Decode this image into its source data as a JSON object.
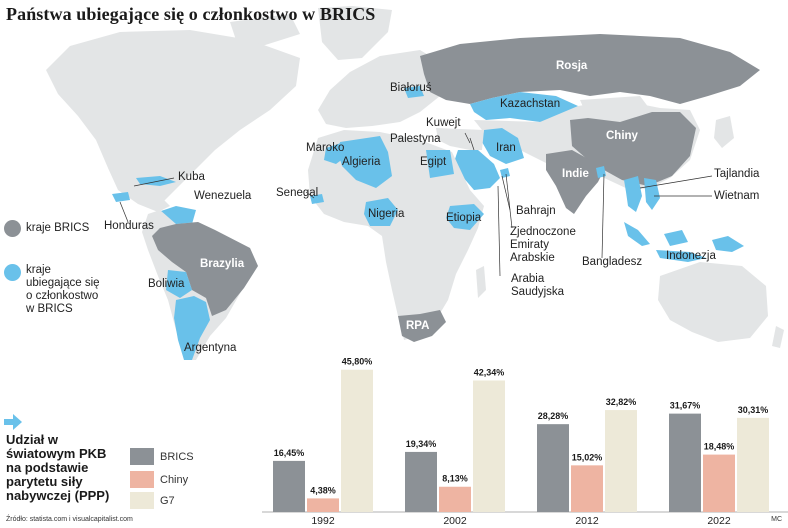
{
  "title": "Państwa ubiegające się o członkostwo w BRICS",
  "colors": {
    "brics": "#8c9196",
    "candidate": "#69c1ea",
    "land": "#e3e5e6",
    "chiny": "#eeb4a2",
    "g7": "#ede9d8"
  },
  "legend": {
    "brics": "kraje BRICS",
    "candidate": "kraje ubiegające się o członkostwo w BRICS"
  },
  "map_labels": {
    "rosja": "Rosja",
    "chiny": "Chiny",
    "indie": "Indie",
    "brazylia": "Brazylia",
    "rpa": "RPA",
    "bialorus": "Białoruś",
    "kazachstan": "Kazachstan",
    "kuwejt": "Kuwejt",
    "palestyna": "Palestyna",
    "maroko": "Maroko",
    "algieria": "Algieria",
    "egipt": "Egipt",
    "iran": "Iran",
    "kuba": "Kuba",
    "wenezuela": "Wenezuela",
    "senegal": "Senegal",
    "nigeria": "Nigeria",
    "etiopia": "Etiopia",
    "honduras": "Honduras",
    "boliwia": "Boliwia",
    "argentyna": "Argentyna",
    "bahrajn": "Bahrajn",
    "zea": "Zjednoczone Emiraty Arabskie",
    "arabia": "Arabia Saudyjska",
    "tajlandia": "Tajlandia",
    "wietnam": "Wietnam",
    "bangladesz": "Bangladesz",
    "indonezja": "Indonezja"
  },
  "chart_heading": "Udział w światowym PKB na podstawie parytetu siły nabywczej (PPP)",
  "chart_data": {
    "type": "bar",
    "categories": [
      "1992",
      "2002",
      "2012",
      "2022"
    ],
    "series": [
      {
        "name": "BRICS",
        "values": [
          16.45,
          19.34,
          28.28,
          31.67
        ],
        "labels": [
          "16,45%",
          "19,34%",
          "28,28%",
          "31,67%"
        ]
      },
      {
        "name": "Chiny",
        "values": [
          4.38,
          8.13,
          15.02,
          18.48
        ],
        "labels": [
          "4,38%",
          "8,13%",
          "15,02%",
          "18,48%"
        ]
      },
      {
        "name": "G7",
        "values": [
          45.8,
          42.34,
          32.82,
          30.31
        ],
        "labels": [
          "45,80%",
          "42,34%",
          "32,82%",
          "30,31%"
        ]
      }
    ],
    "ylim": [
      0,
      47
    ]
  },
  "source": "Źródło: statista.com i visualcapitalist.com",
  "signature": "MC"
}
